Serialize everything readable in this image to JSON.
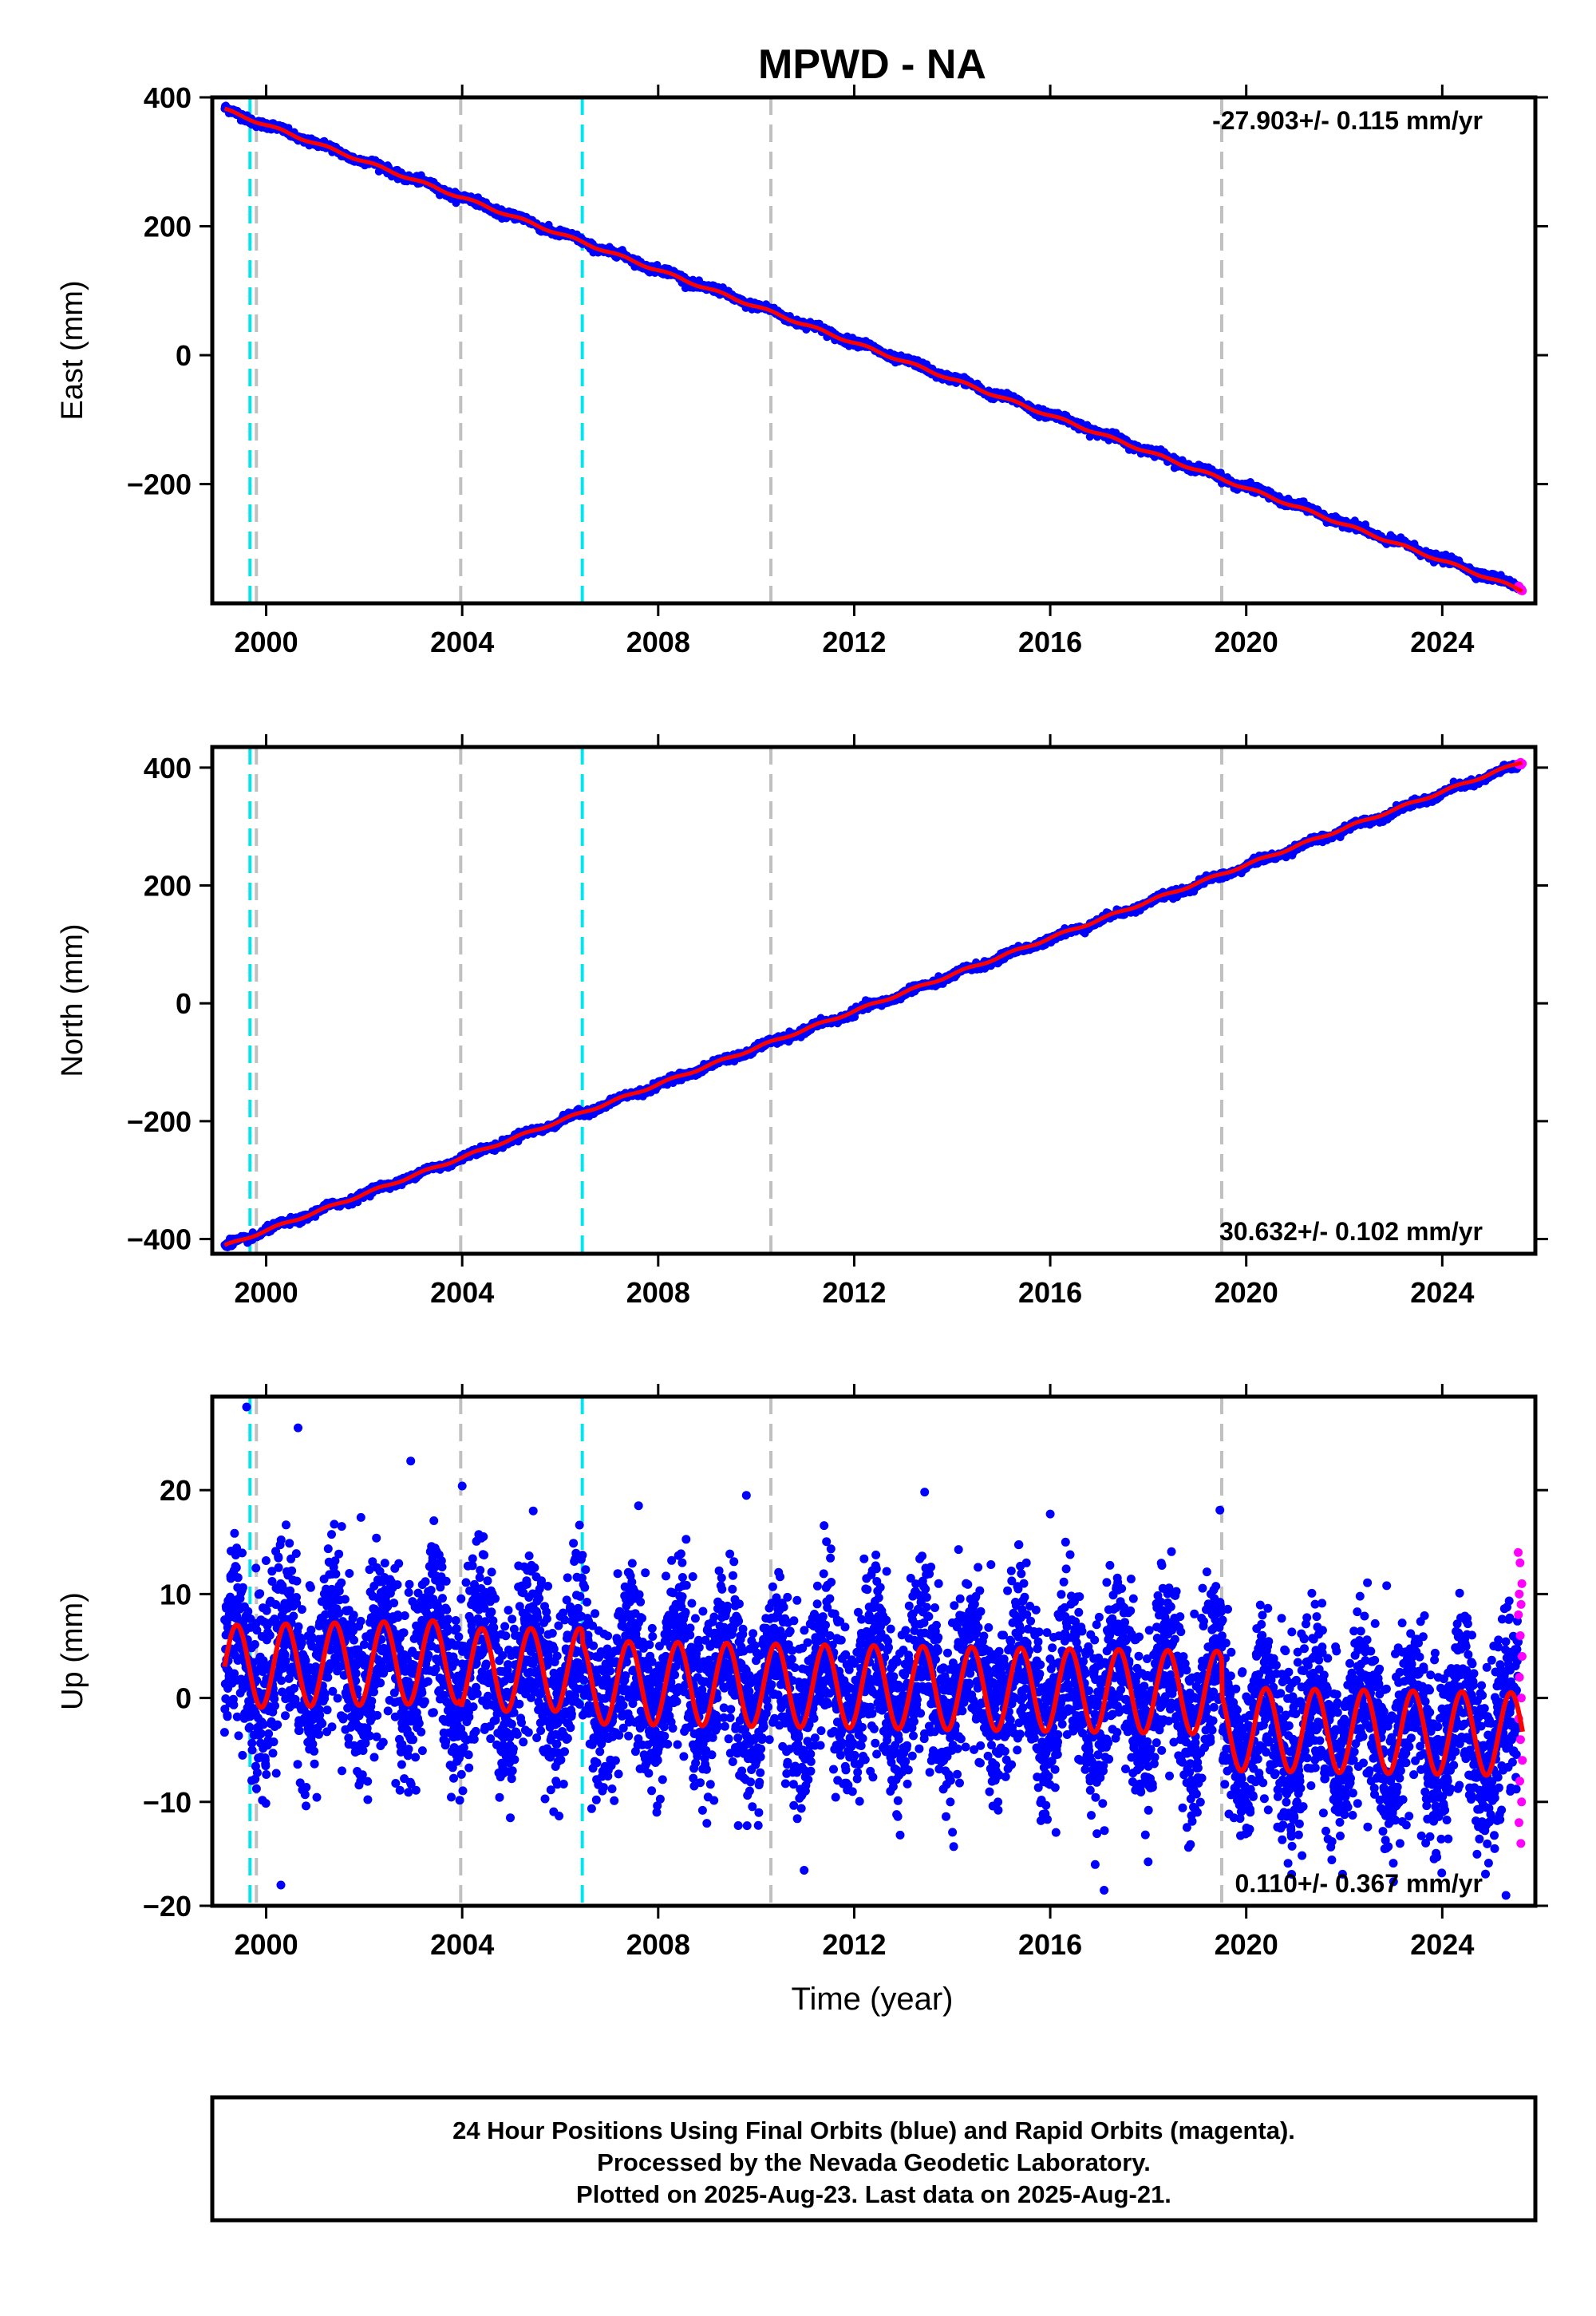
{
  "title": "MPWD - NA",
  "xlabel": "Time (year)",
  "footer": {
    "line1": "24 Hour Positions Using Final Orbits (blue) and Rapid Orbits (magenta).",
    "line2": "Processed by the Nevada Geodetic Laboratory.",
    "line3": "Plotted on 2025-Aug-23. Last data on 2025-Aug-21."
  },
  "colors": {
    "final_orbits": "#0000ff",
    "rapid_orbits": "#ff00ff",
    "model_fit": "#ff0000",
    "equipment_change": "#00e5ee",
    "earthquake_event": "#c0c0c0"
  },
  "chart_data": [
    {
      "type": "scatter",
      "panel": "east",
      "ylabel": "East (mm)",
      "xlim": [
        1998.9,
        2025.9
      ],
      "ylim": [
        -385,
        400
      ],
      "x_ticks": [
        2000,
        2004,
        2008,
        2012,
        2016,
        2020,
        2024
      ],
      "y_ticks": [
        -200,
        0,
        200,
        400
      ],
      "rate_label": "-27.903+/- 0.115 mm/yr",
      "rate_position": "top-right",
      "grid": false,
      "cyan_lines": [
        1999.67,
        2006.45
      ],
      "gray_lines": [
        1999.8,
        2003.97,
        2010.3,
        2019.5
      ],
      "series": [
        {
          "name": "Final Orbits",
          "color": "#0000ff",
          "x_range": [
            1999.15,
            2025.55
          ],
          "start": 381,
          "end": -360,
          "seasonal_amp": 3,
          "noise": 3
        },
        {
          "name": "Rapid Orbits",
          "color": "#ff00ff",
          "x_range": [
            2025.55,
            2025.64
          ],
          "start": -360,
          "end": -367,
          "noise": 2
        }
      ],
      "model": {
        "color": "#ff0000",
        "start": 381,
        "end": -365,
        "seasonal_amp": 2
      }
    },
    {
      "type": "scatter",
      "panel": "north",
      "ylabel": "North (mm)",
      "xlim": [
        1998.9,
        2025.9
      ],
      "ylim": [
        -425,
        435
      ],
      "x_ticks": [
        2000,
        2004,
        2008,
        2012,
        2016,
        2020,
        2024
      ],
      "y_ticks": [
        -400,
        -200,
        0,
        200,
        400
      ],
      "rate_label": "30.632+/- 0.102 mm/yr",
      "rate_position": "bottom-right",
      "grid": false,
      "cyan_lines": [
        1999.67,
        2006.45
      ],
      "gray_lines": [
        1999.8,
        2003.97,
        2010.3,
        2019.5
      ],
      "series": [
        {
          "name": "Final Orbits",
          "color": "#0000ff",
          "x_range": [
            1999.15,
            2025.55
          ],
          "start": -412,
          "end": 404,
          "seasonal_amp": 3,
          "noise": 3
        },
        {
          "name": "Rapid Orbits",
          "color": "#ff00ff",
          "x_range": [
            2025.55,
            2025.64
          ],
          "start": 404,
          "end": 410,
          "noise": 2
        }
      ],
      "model": {
        "color": "#ff0000",
        "start": -412,
        "end": 410,
        "seasonal_amp": 2
      }
    },
    {
      "type": "scatter",
      "panel": "up",
      "ylabel": "Up (mm)",
      "xlim": [
        1998.9,
        2025.9
      ],
      "ylim": [
        -20,
        29
      ],
      "x_ticks": [
        2000,
        2004,
        2008,
        2012,
        2016,
        2020,
        2024
      ],
      "y_ticks": [
        -20,
        -10,
        0,
        10,
        20
      ],
      "rate_label": "0.110+/- 0.367 mm/yr",
      "rate_position": "bottom-right",
      "grid": false,
      "cyan_lines": [
        1999.67,
        2006.45
      ],
      "gray_lines": [
        1999.8,
        2003.97,
        2010.3,
        2019.5
      ],
      "series": [
        {
          "name": "Final Orbits",
          "color": "#0000ff",
          "x_range": [
            1999.15,
            2025.55
          ],
          "noise": 4.2
        },
        {
          "name": "Rapid Orbits",
          "color": "#ff00ff",
          "x_range": [
            2025.55,
            2025.64
          ],
          "y_values": [
            14,
            13,
            11,
            10,
            9,
            8,
            6,
            4,
            2,
            0,
            -2,
            -4,
            -6,
            -8,
            -10,
            -12,
            -14
          ]
        }
      ],
      "model": {
        "color": "#ff0000",
        "seasonal_amp": 4,
        "segments": [
          {
            "x_range": [
              1999.15,
              2003.97
            ],
            "offset_start": 3.0,
            "offset_end": 3.5
          },
          {
            "x_range": [
              2003.97,
              2006.45
            ],
            "offset_start": 2.7,
            "offset_end": 2.7
          },
          {
            "x_range": [
              2006.45,
              2019.5
            ],
            "offset_start": 1.5,
            "offset_end": 0.5
          },
          {
            "x_range": [
              2019.5,
              2025.64
            ],
            "offset_start": -3.0,
            "offset_end": -3.5
          }
        ]
      },
      "outliers": [
        [
          1999.6,
          28
        ],
        [
          2000.65,
          26
        ],
        [
          2002.95,
          22.8
        ],
        [
          2004.0,
          20.4
        ],
        [
          2005.45,
          18
        ],
        [
          2007.6,
          18.5
        ],
        [
          2009.8,
          19.5
        ],
        [
          2016.0,
          17.7
        ],
        [
          2000.3,
          -18
        ],
        [
          2017.1,
          -18.5
        ],
        [
          2025.3,
          -19
        ]
      ]
    }
  ]
}
